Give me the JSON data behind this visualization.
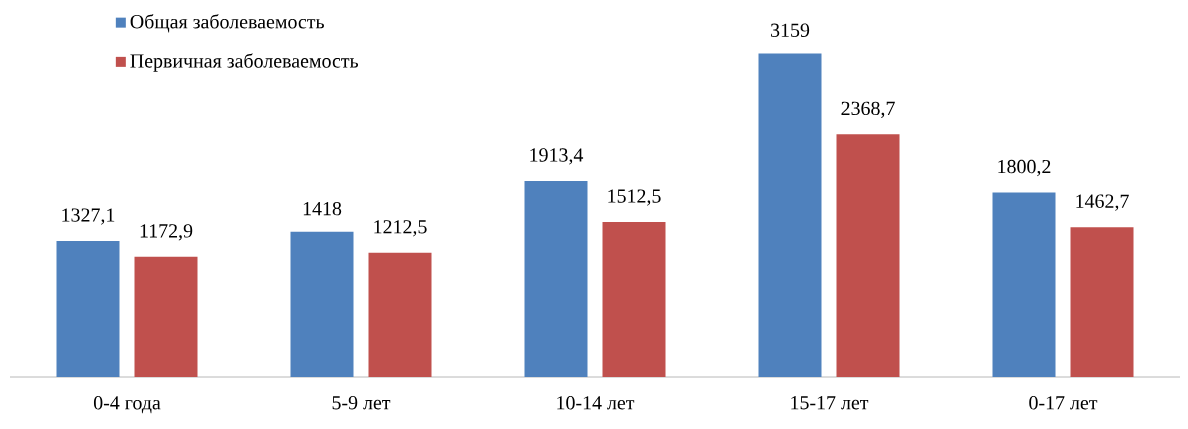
{
  "chart_data": {
    "type": "bar",
    "categories": [
      "0-4 года",
      "5-9 лет",
      "10-14 лет",
      "15-17 лет",
      "0-17 лет"
    ],
    "series": [
      {
        "name": "Общая заболеваемость",
        "color": "#4f81bd",
        "values": [
          1327.1,
          1418,
          1913.4,
          3159,
          1800.2
        ],
        "value_labels": [
          "1327,1",
          "1418",
          "1913,4",
          "3159",
          "1800,2"
        ]
      },
      {
        "name": "Первичная заболеваемость",
        "color": "#c0504d",
        "values": [
          1172.9,
          1212.5,
          1512.5,
          2368.7,
          1462.7
        ],
        "value_labels": [
          "1172,9",
          "1212,5",
          "1512,5",
          "2368,7",
          "1462,7"
        ]
      }
    ],
    "legend": "top left"
  }
}
